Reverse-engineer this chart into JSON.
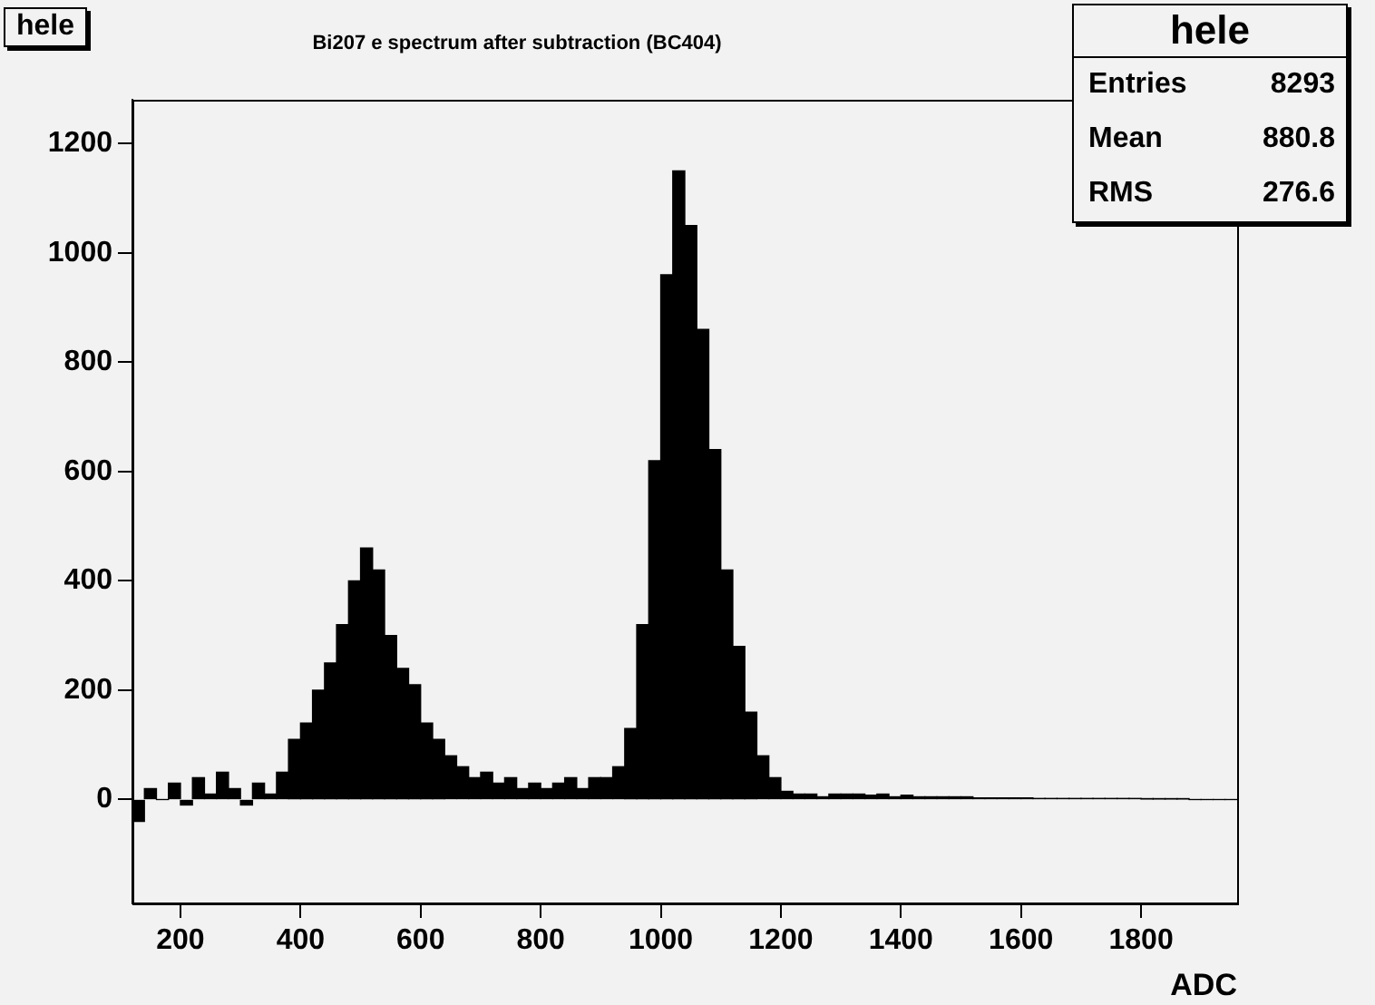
{
  "chart_data": {
    "type": "histogram",
    "title": "Bi207 e spectrum after subtraction (BC404)",
    "xlabel": "ADC",
    "bins": [
      120,
      140,
      160,
      180,
      200,
      220,
      240,
      260,
      280,
      300,
      320,
      340,
      360,
      380,
      400,
      420,
      440,
      460,
      480,
      500,
      520,
      540,
      560,
      580,
      600,
      620,
      640,
      660,
      680,
      700,
      720,
      740,
      760,
      780,
      800,
      820,
      840,
      860,
      880,
      900,
      920,
      940,
      960,
      980,
      1000,
      1020,
      1040,
      1060,
      1080,
      1100,
      1120,
      1140,
      1160,
      1180,
      1200,
      1220,
      1240,
      1260,
      1280,
      1300,
      1320,
      1340,
      1360,
      1380,
      1400,
      1420,
      1440,
      1460,
      1480,
      1500,
      1520,
      1540,
      1560,
      1580,
      1600,
      1620,
      1640,
      1660,
      1680,
      1700,
      1720,
      1740,
      1760,
      1780,
      1800,
      1820,
      1840,
      1860,
      1880,
      1900,
      1920,
      1940,
      1960
    ],
    "values": [
      -40,
      20,
      0,
      30,
      -10,
      40,
      10,
      50,
      20,
      -10,
      30,
      10,
      50,
      110,
      140,
      200,
      250,
      320,
      400,
      460,
      420,
      300,
      240,
      210,
      140,
      110,
      80,
      60,
      40,
      50,
      30,
      40,
      20,
      30,
      20,
      30,
      40,
      20,
      40,
      40,
      60,
      130,
      320,
      620,
      960,
      1150,
      1050,
      860,
      640,
      420,
      280,
      160,
      80,
      40,
      15,
      10,
      10,
      5,
      10,
      10,
      10,
      8,
      10,
      5,
      8,
      5,
      5,
      5,
      5,
      5,
      3,
      3,
      3,
      3,
      3,
      2,
      2,
      2,
      2,
      2,
      2,
      2,
      2,
      2,
      1,
      1,
      1,
      1,
      0,
      0,
      0,
      0
    ],
    "color": "#000000",
    "xlim": [
      120,
      1960
    ],
    "xticks": [
      200,
      400,
      600,
      800,
      1000,
      1200,
      1400,
      1600,
      1800
    ],
    "ylim": [
      -190,
      1280
    ],
    "yticks": [
      0,
      200,
      400,
      600,
      800,
      1000,
      1200
    ],
    "grid": false,
    "annotations": [
      "hele",
      "hele",
      "Entries 8293",
      "Mean 880.8",
      "RMS 276.6"
    ]
  }
}
